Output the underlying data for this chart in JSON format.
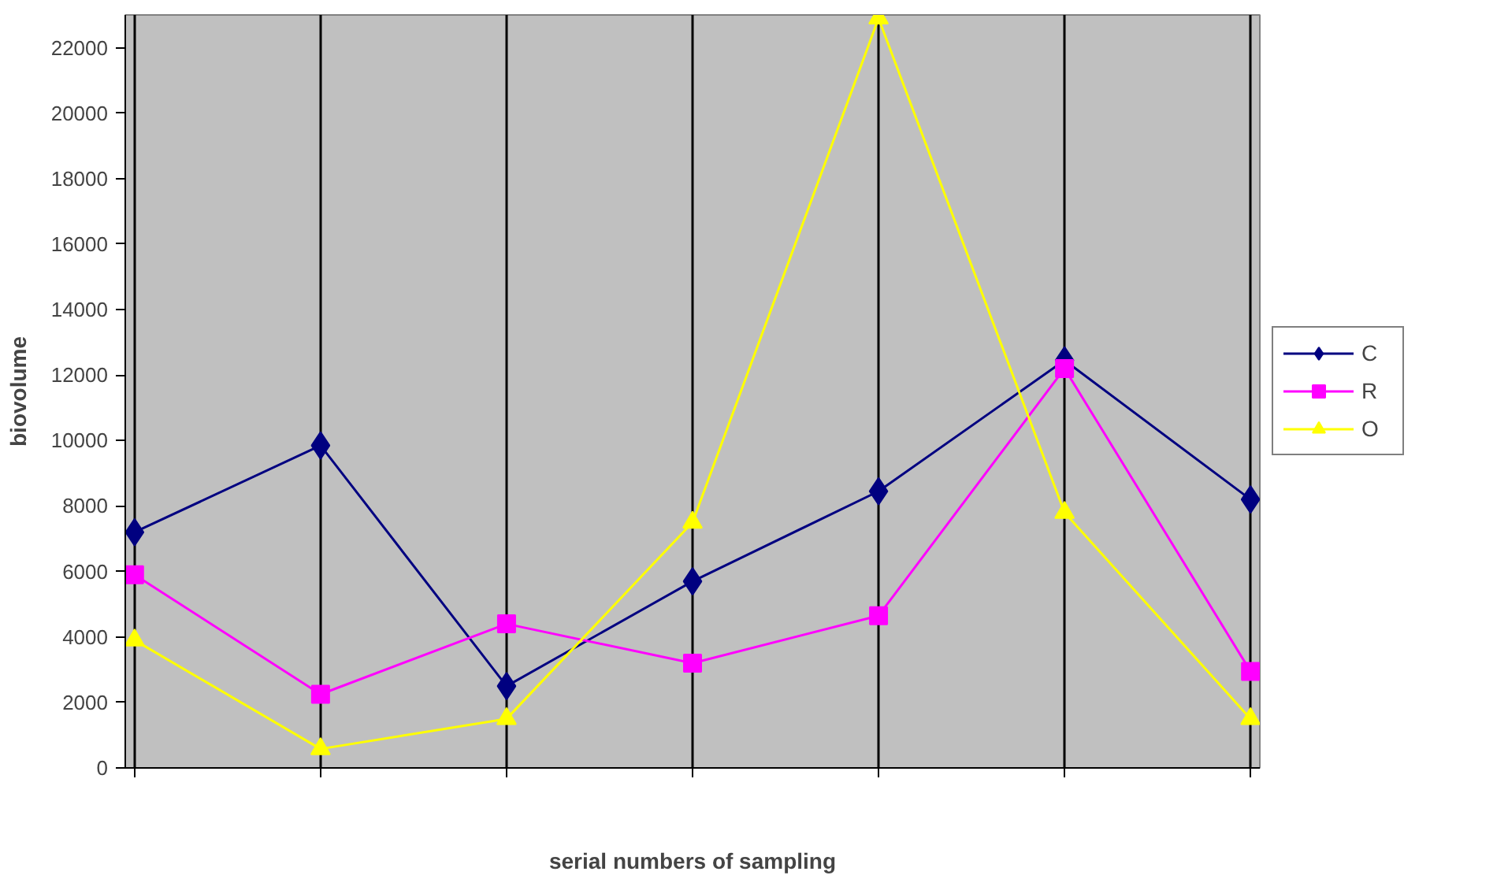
{
  "chart_data": {
    "type": "line",
    "xlabel": "serial numbers of sampling",
    "ylabel": "biovolume",
    "categories": [
      null,
      null,
      null,
      null,
      null,
      null,
      null
    ],
    "ylim": [
      0,
      23000
    ],
    "yticks": [
      0,
      2000,
      4000,
      6000,
      8000,
      10000,
      12000,
      14000,
      16000,
      18000,
      20000,
      22000
    ],
    "tick_labels": "y",
    "grid": "x",
    "legend": "right",
    "series": [
      {
        "name": "C",
        "color": "#000080",
        "marker": "diamond",
        "values": [
          7200,
          9850,
          2500,
          5700,
          8450,
          12450,
          8200
        ]
      },
      {
        "name": "R",
        "color": "#ff00ff",
        "marker": "square",
        "values": [
          5900,
          2250,
          4400,
          3200,
          4650,
          12200,
          2950
        ]
      },
      {
        "name": "O",
        "color": "#ffff00",
        "marker": "triangle",
        "values": [
          3900,
          580,
          1500,
          7500,
          22900,
          7800,
          1500
        ]
      }
    ]
  }
}
